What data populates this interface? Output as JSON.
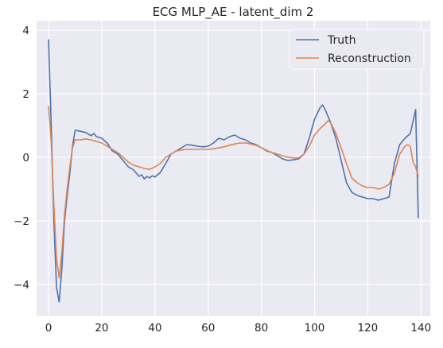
{
  "chart_data": {
    "type": "line",
    "title": "ECG MLP_AE - latent_dim 2",
    "xlabel": "",
    "ylabel": "",
    "xlim": [
      -4.5,
      143.5
    ],
    "ylim": [
      -5.0,
      4.3
    ],
    "xticks": [
      0,
      20,
      40,
      60,
      80,
      100,
      120,
      140
    ],
    "yticks": [
      -4,
      -2,
      0,
      2,
      4
    ],
    "xtick_labels": [
      "0",
      "20",
      "40",
      "60",
      "80",
      "100",
      "120",
      "140"
    ],
    "ytick_labels": [
      "−4",
      "−2",
      "0",
      "2",
      "4"
    ],
    "grid": true,
    "legend_position": "top-right",
    "background": "#eaeaf2",
    "series": [
      {
        "name": "Truth",
        "color": "#4c72b0",
        "x": [
          0,
          1,
          2,
          3,
          4,
          5,
          6,
          7,
          8,
          9,
          10,
          12,
          14,
          16,
          17,
          18,
          20,
          22,
          24,
          26,
          28,
          30,
          32,
          34,
          35,
          36,
          37,
          38,
          39,
          40,
          42,
          44,
          46,
          48,
          50,
          52,
          54,
          56,
          58,
          60,
          62,
          64,
          66,
          68,
          70,
          72,
          74,
          76,
          78,
          80,
          82,
          84,
          86,
          88,
          90,
          92,
          94,
          96,
          98,
          100,
          102,
          103,
          104,
          106,
          108,
          110,
          112,
          114,
          116,
          118,
          120,
          122,
          124,
          126,
          128,
          130,
          132,
          134,
          136,
          138,
          139
        ],
        "values": [
          3.7,
          1.0,
          -2.0,
          -4.1,
          -4.55,
          -3.5,
          -2.0,
          -1.2,
          -0.5,
          0.35,
          0.85,
          0.82,
          0.78,
          0.68,
          0.75,
          0.65,
          0.6,
          0.45,
          0.2,
          0.1,
          -0.1,
          -0.3,
          -0.4,
          -0.6,
          -0.55,
          -0.68,
          -0.6,
          -0.65,
          -0.58,
          -0.62,
          -0.48,
          -0.2,
          0.1,
          0.2,
          0.3,
          0.4,
          0.38,
          0.35,
          0.33,
          0.35,
          0.45,
          0.6,
          0.55,
          0.65,
          0.7,
          0.6,
          0.55,
          0.45,
          0.4,
          0.3,
          0.2,
          0.15,
          0.05,
          -0.05,
          -0.1,
          -0.08,
          -0.05,
          0.1,
          0.6,
          1.2,
          1.55,
          1.65,
          1.5,
          1.1,
          0.6,
          -0.1,
          -0.8,
          -1.1,
          -1.2,
          -1.25,
          -1.3,
          -1.3,
          -1.35,
          -1.3,
          -1.25,
          -0.2,
          0.4,
          0.6,
          0.75,
          1.5,
          -1.9
        ]
      },
      {
        "name": "Reconstruction",
        "color": "#dd8452",
        "x": [
          0,
          1,
          2,
          3,
          4,
          5,
          6,
          7,
          8,
          9,
          10,
          12,
          14,
          16,
          18,
          20,
          22,
          24,
          26,
          28,
          30,
          32,
          34,
          36,
          38,
          40,
          42,
          44,
          46,
          48,
          50,
          52,
          54,
          56,
          58,
          60,
          62,
          64,
          66,
          68,
          70,
          72,
          74,
          76,
          78,
          80,
          82,
          84,
          86,
          88,
          90,
          92,
          94,
          96,
          98,
          100,
          102,
          104,
          105,
          106,
          108,
          110,
          112,
          114,
          116,
          118,
          120,
          122,
          124,
          126,
          128,
          130,
          132,
          134,
          135,
          136,
          137,
          138,
          139
        ],
        "values": [
          1.6,
          0.5,
          -1.5,
          -3.2,
          -3.8,
          -3.0,
          -1.8,
          -1.0,
          -0.3,
          0.3,
          0.55,
          0.55,
          0.58,
          0.55,
          0.5,
          0.45,
          0.35,
          0.25,
          0.15,
          0.0,
          -0.15,
          -0.25,
          -0.3,
          -0.35,
          -0.38,
          -0.3,
          -0.2,
          0.0,
          0.1,
          0.2,
          0.23,
          0.25,
          0.25,
          0.25,
          0.25,
          0.25,
          0.27,
          0.3,
          0.33,
          0.38,
          0.42,
          0.45,
          0.45,
          0.42,
          0.38,
          0.3,
          0.22,
          0.15,
          0.1,
          0.05,
          0.0,
          -0.02,
          -0.02,
          0.1,
          0.35,
          0.7,
          0.9,
          1.05,
          1.15,
          1.1,
          0.75,
          0.3,
          -0.2,
          -0.65,
          -0.8,
          -0.9,
          -0.95,
          -0.95,
          -1.0,
          -0.95,
          -0.85,
          -0.5,
          0.1,
          0.35,
          0.4,
          0.35,
          -0.15,
          -0.3,
          -0.6
        ]
      }
    ]
  }
}
